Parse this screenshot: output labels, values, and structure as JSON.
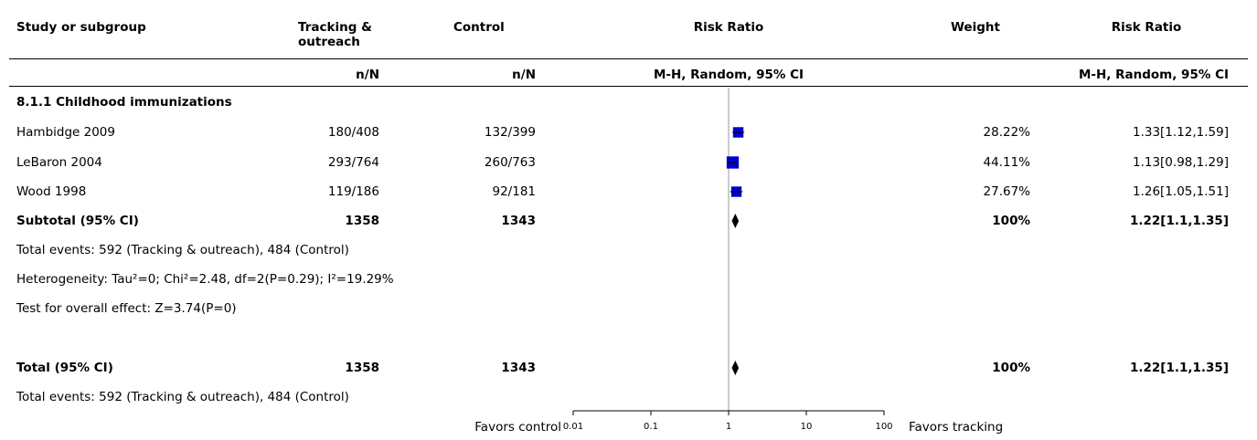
{
  "headers": {
    "study": "Study or subgroup",
    "exp_line1": "Tracking &",
    "exp_line2": "outreach",
    "control": "Control",
    "risk_ratio": "Risk Ratio",
    "weight": "Weight",
    "risk_ratio2": "Risk Ratio",
    "exp_sub": "n/N",
    "ctrl_sub": "n/N",
    "method_plot": "M-H, Random, 95% CI",
    "method_col": "M-H, Random, 95% CI"
  },
  "subgroup_title": "8.1.1 Childhood immunizations",
  "studies": [
    {
      "name": "Hambidge 2009",
      "exp": "180/408",
      "ctrl": "132/399",
      "weight": "28.22%",
      "rr_text": "1.33[1.12,1.59]"
    },
    {
      "name": "LeBaron 2004",
      "exp": "293/764",
      "ctrl": "260/763",
      "weight": "44.11%",
      "rr_text": "1.13[0.98,1.29]"
    },
    {
      "name": "Wood 1998",
      "exp": "119/186",
      "ctrl": "92/181",
      "weight": "27.67%",
      "rr_text": "1.26[1.05,1.51]"
    }
  ],
  "subtotal": {
    "label": "Subtotal (95% CI)",
    "exp": "1358",
    "ctrl": "1343",
    "weight": "100%",
    "rr_text": "1.22[1.1,1.35]"
  },
  "subtotal_notes": {
    "events": "Total events: 592 (Tracking & outreach), 484 (Control)",
    "heterogeneity": "Heterogeneity: Tau²=0; Chi²=2.48, df=2(P=0.29); I²=19.29%",
    "overall": "Test for overall effect: Z=3.74(P=0)"
  },
  "total": {
    "label": "Total (95% CI)",
    "exp": "1358",
    "ctrl": "1343",
    "weight": "100%",
    "rr_text": "1.22[1.1,1.35]"
  },
  "total_notes": {
    "events": "Total events: 592 (Tracking & outreach), 484 (Control)"
  },
  "axis": {
    "favors_left": "Favors control",
    "favors_right": "Favors tracking"
  },
  "chart_data": {
    "type": "forest",
    "scale": "log",
    "xlim": [
      0.01,
      100
    ],
    "ticks": [
      {
        "value": 0.01,
        "label": "0.01"
      },
      {
        "value": 0.1,
        "label": "0.1"
      },
      {
        "value": 1,
        "label": "1"
      },
      {
        "value": 10,
        "label": "10"
      },
      {
        "value": 100,
        "label": "100"
      }
    ],
    "studies": [
      {
        "rr": 1.33,
        "lo": 1.12,
        "hi": 1.59,
        "weight": 28.22
      },
      {
        "rr": 1.13,
        "lo": 0.98,
        "hi": 1.29,
        "weight": 44.11
      },
      {
        "rr": 1.26,
        "lo": 1.05,
        "hi": 1.51,
        "weight": 27.67
      }
    ],
    "diamonds": [
      {
        "rr": 1.22,
        "lo": 1.1,
        "hi": 1.35
      },
      {
        "rr": 1.22,
        "lo": 1.1,
        "hi": 1.35
      }
    ],
    "colors": {
      "marker": "#0000cc",
      "line": "#000000",
      "reference": "#999999"
    }
  }
}
